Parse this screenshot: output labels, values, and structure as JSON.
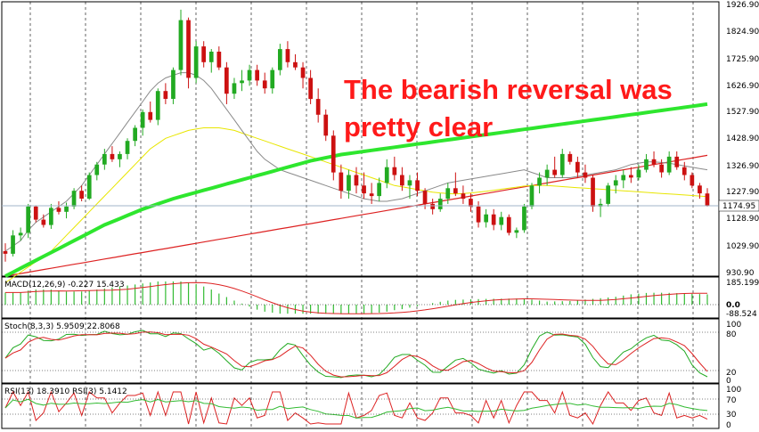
{
  "annotation": {
    "line1": "The bearish reversal was",
    "line2": "pretty clear"
  },
  "price_panel": {
    "y_ticks": [
      "1926.90",
      "1824.90",
      "1725.90",
      "1626.90",
      "1527.90",
      "1428.90",
      "1326.90",
      "1227.90",
      "1128.90",
      "1029.90",
      "930.90"
    ],
    "current_price": "1174.95",
    "ylim": [
      905,
      1950
    ]
  },
  "macd_panel": {
    "label": "MACD(12,26,9) -0.227 15.433",
    "y_ticks": [
      "185.199",
      "0.0",
      "-88.524"
    ]
  },
  "stoch_panel": {
    "label": "Stoch(8,3,3) 5.9509 22.8068",
    "y_ticks": [
      "100",
      "80",
      "20",
      "0"
    ]
  },
  "rsi_panel": {
    "label": "RSI(13) 18.3910  RSI(3) 5.1412",
    "y_ticks": [
      "100",
      "70",
      "30",
      "0"
    ]
  },
  "colors": {
    "bull": "#22aa22",
    "bear": "#cc1111",
    "ma_fast": "#8a8a8a",
    "ma_mid": "#e8e600",
    "ma_100": "#2ee62e",
    "ma_200": "#dd2222",
    "stoch_k": "#22aa22",
    "stoch_d": "#dd2222",
    "rsi_fast": "#dd2222",
    "rsi_slow": "#33bb33",
    "macd_hist": "#33bb33",
    "macd_signal": "#dd2222",
    "annotation": "#ff1a1a"
  },
  "chart_data": {
    "type": "candlestick",
    "candles": [
      [
        1000,
        1030,
        960,
        990
      ],
      [
        990,
        1080,
        980,
        1060
      ],
      [
        1060,
        1090,
        1040,
        1070
      ],
      [
        1070,
        1180,
        1050,
        1170
      ],
      [
        1170,
        1175,
        1110,
        1120
      ],
      [
        1120,
        1140,
        1090,
        1100
      ],
      [
        1100,
        1180,
        1085,
        1165
      ],
      [
        1165,
        1190,
        1140,
        1150
      ],
      [
        1150,
        1185,
        1125,
        1170
      ],
      [
        1170,
        1240,
        1160,
        1230
      ],
      [
        1230,
        1250,
        1190,
        1200
      ],
      [
        1200,
        1300,
        1195,
        1290
      ],
      [
        1290,
        1340,
        1270,
        1330
      ],
      [
        1330,
        1390,
        1310,
        1370
      ],
      [
        1370,
        1400,
        1340,
        1350
      ],
      [
        1350,
        1380,
        1320,
        1370
      ],
      [
        1370,
        1430,
        1350,
        1420
      ],
      [
        1420,
        1480,
        1400,
        1470
      ],
      [
        1470,
        1540,
        1440,
        1530
      ],
      [
        1530,
        1570,
        1490,
        1500
      ],
      [
        1500,
        1620,
        1480,
        1610
      ],
      [
        1610,
        1640,
        1560,
        1580
      ],
      [
        1580,
        1700,
        1560,
        1690
      ],
      [
        1690,
        1920,
        1670,
        1880
      ],
      [
        1880,
        1890,
        1620,
        1660
      ],
      [
        1660,
        1800,
        1640,
        1780
      ],
      [
        1780,
        1800,
        1700,
        1720
      ],
      [
        1720,
        1770,
        1680,
        1760
      ],
      [
        1760,
        1780,
        1690,
        1700
      ],
      [
        1700,
        1720,
        1560,
        1600
      ],
      [
        1600,
        1660,
        1580,
        1640
      ],
      [
        1640,
        1690,
        1610,
        1650
      ],
      [
        1650,
        1710,
        1630,
        1690
      ],
      [
        1690,
        1710,
        1630,
        1650
      ],
      [
        1650,
        1680,
        1600,
        1620
      ],
      [
        1620,
        1700,
        1600,
        1690
      ],
      [
        1690,
        1790,
        1670,
        1770
      ],
      [
        1770,
        1800,
        1700,
        1720
      ],
      [
        1720,
        1750,
        1690,
        1700
      ],
      [
        1700,
        1720,
        1620,
        1660
      ],
      [
        1660,
        1690,
        1560,
        1580
      ],
      [
        1580,
        1620,
        1490,
        1520
      ],
      [
        1520,
        1540,
        1420,
        1440
      ],
      [
        1440,
        1460,
        1270,
        1300
      ],
      [
        1300,
        1330,
        1200,
        1230
      ],
      [
        1230,
        1310,
        1200,
        1290
      ],
      [
        1290,
        1320,
        1220,
        1250
      ],
      [
        1250,
        1300,
        1200,
        1220
      ],
      [
        1220,
        1260,
        1180,
        1210
      ],
      [
        1210,
        1280,
        1190,
        1260
      ],
      [
        1260,
        1350,
        1240,
        1320
      ],
      [
        1320,
        1360,
        1270,
        1290
      ],
      [
        1290,
        1320,
        1230,
        1250
      ],
      [
        1250,
        1290,
        1200,
        1270
      ],
      [
        1270,
        1300,
        1210,
        1230
      ],
      [
        1230,
        1240,
        1160,
        1180
      ],
      [
        1180,
        1200,
        1140,
        1160
      ],
      [
        1160,
        1220,
        1150,
        1200
      ],
      [
        1200,
        1260,
        1180,
        1240
      ],
      [
        1240,
        1300,
        1210,
        1220
      ],
      [
        1220,
        1250,
        1180,
        1200
      ],
      [
        1200,
        1220,
        1150,
        1170
      ],
      [
        1170,
        1190,
        1090,
        1110
      ],
      [
        1110,
        1160,
        1090,
        1140
      ],
      [
        1140,
        1160,
        1080,
        1100
      ],
      [
        1100,
        1150,
        1080,
        1130
      ],
      [
        1130,
        1140,
        1060,
        1070
      ],
      [
        1070,
        1090,
        1050,
        1080
      ],
      [
        1080,
        1180,
        1070,
        1170
      ],
      [
        1170,
        1260,
        1160,
        1250
      ],
      [
        1250,
        1300,
        1220,
        1280
      ],
      [
        1280,
        1330,
        1250,
        1310
      ],
      [
        1310,
        1360,
        1280,
        1290
      ],
      [
        1290,
        1390,
        1280,
        1370
      ],
      [
        1370,
        1380,
        1330,
        1340
      ],
      [
        1340,
        1360,
        1280,
        1300
      ],
      [
        1300,
        1330,
        1260,
        1280
      ],
      [
        1280,
        1290,
        1150,
        1170
      ],
      [
        1170,
        1200,
        1130,
        1180
      ],
      [
        1180,
        1260,
        1170,
        1250
      ],
      [
        1250,
        1290,
        1220,
        1270
      ],
      [
        1270,
        1310,
        1240,
        1290
      ],
      [
        1290,
        1320,
        1260,
        1280
      ],
      [
        1280,
        1330,
        1270,
        1310
      ],
      [
        1310,
        1370,
        1300,
        1350
      ],
      [
        1350,
        1380,
        1320,
        1330
      ],
      [
        1330,
        1350,
        1280,
        1300
      ],
      [
        1300,
        1380,
        1290,
        1360
      ],
      [
        1360,
        1380,
        1310,
        1320
      ],
      [
        1320,
        1340,
        1270,
        1290
      ],
      [
        1290,
        1300,
        1240,
        1250
      ],
      [
        1250,
        1260,
        1200,
        1220
      ],
      [
        1220,
        1240,
        1170,
        1175
      ]
    ],
    "ma_fast": [
      1000,
      1020,
      1040,
      1080,
      1110,
      1130,
      1150,
      1170,
      1190,
      1220,
      1250,
      1290,
      1330,
      1370,
      1410,
      1450,
      1490,
      1530,
      1570,
      1610,
      1640,
      1660,
      1670,
      1680,
      1680,
      1670,
      1650,
      1620,
      1580,
      1540,
      1500,
      1460,
      1420,
      1380,
      1350,
      1330,
      1310,
      1300,
      1290,
      1280,
      1270,
      1260,
      1250,
      1240,
      1230,
      1220,
      1210,
      1200,
      1195,
      1190,
      1190,
      1195,
      1200,
      1210,
      1220,
      1230,
      1240,
      1250,
      1260,
      1265,
      1270,
      1275,
      1280,
      1285,
      1290,
      1295,
      1300,
      1305,
      1310,
      1300,
      1290,
      1280,
      1280,
      1280,
      1280,
      1285,
      1290,
      1295,
      1300,
      1305,
      1310,
      1320,
      1330,
      1335,
      1340,
      1340,
      1338,
      1335,
      1330,
      1325,
      1320,
      1315,
      1310
    ],
    "ma_mid": [
      880,
      900,
      920,
      940,
      960,
      980,
      1000,
      1030,
      1060,
      1090,
      1120,
      1150,
      1180,
      1210,
      1240,
      1270,
      1300,
      1330,
      1360,
      1390,
      1410,
      1430,
      1440,
      1450,
      1460,
      1465,
      1470,
      1470,
      1470,
      1465,
      1460,
      1450,
      1440,
      1430,
      1420,
      1410,
      1400,
      1390,
      1380,
      1370,
      1360,
      1350,
      1340,
      1330,
      1320,
      1310,
      1300,
      1290,
      1280,
      1270,
      1260,
      1250,
      1245,
      1240,
      1235,
      1230,
      1225,
      1222,
      1220,
      1218,
      1220,
      1222,
      1225,
      1228,
      1232,
      1236,
      1240,
      1244,
      1248,
      1250,
      1250,
      1250,
      1248,
      1246,
      1244,
      1242,
      1240,
      1238,
      1236,
      1234,
      1232,
      1230,
      1228,
      1226,
      1224,
      1222,
      1220,
      1218,
      1216,
      1214,
      1212,
      1210,
      1208
    ],
    "ma_100": [
      905,
      920,
      935,
      950,
      965,
      980,
      995,
      1010,
      1025,
      1040,
      1055,
      1070,
      1085,
      1100,
      1112,
      1124,
      1136,
      1148,
      1160,
      1170,
      1180,
      1190,
      1200,
      1208,
      1216,
      1224,
      1232,
      1240,
      1248,
      1256,
      1264,
      1272,
      1280,
      1288,
      1296,
      1304,
      1312,
      1320,
      1328,
      1336,
      1344,
      1350,
      1356,
      1362,
      1368,
      1372,
      1376,
      1380,
      1384,
      1388,
      1392,
      1396,
      1400,
      1404,
      1408,
      1412,
      1416,
      1420,
      1424,
      1428,
      1432,
      1436,
      1440,
      1444,
      1448,
      1452,
      1456,
      1460,
      1464,
      1468,
      1472,
      1476,
      1480,
      1484,
      1488,
      1492,
      1496,
      1500,
      1504,
      1508,
      1512,
      1516,
      1520,
      1524,
      1528,
      1532,
      1536,
      1540,
      1544,
      1548,
      1552,
      1556,
      1560
    ],
    "ma_200": [
      905,
      910,
      915,
      920,
      925,
      930,
      935,
      940,
      945,
      950,
      955,
      960,
      965,
      970,
      975,
      980,
      985,
      990,
      995,
      1000,
      1005,
      1010,
      1015,
      1020,
      1025,
      1030,
      1035,
      1040,
      1045,
      1050,
      1055,
      1060,
      1065,
      1070,
      1075,
      1080,
      1085,
      1090,
      1095,
      1100,
      1105,
      1110,
      1115,
      1120,
      1125,
      1130,
      1135,
      1140,
      1145,
      1150,
      1155,
      1160,
      1165,
      1170,
      1175,
      1180,
      1185,
      1190,
      1195,
      1200,
      1205,
      1210,
      1215,
      1220,
      1225,
      1230,
      1235,
      1240,
      1245,
      1250,
      1255,
      1260,
      1265,
      1270,
      1275,
      1280,
      1285,
      1290,
      1295,
      1300,
      1305,
      1310,
      1315,
      1320,
      1325,
      1330,
      1335,
      1340,
      1345,
      1350,
      1355,
      1360,
      1365
    ]
  }
}
